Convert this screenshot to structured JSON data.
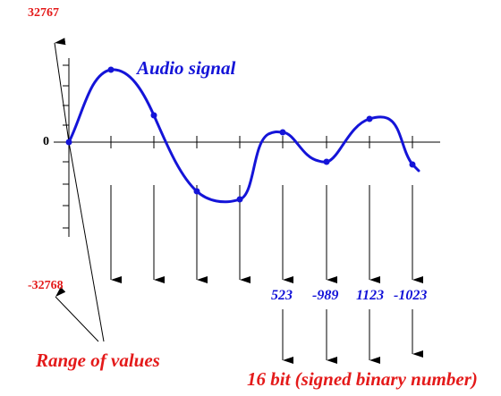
{
  "labels": {
    "max_value": "32767",
    "zero": "0",
    "min_value": "-32768",
    "signal_title": "Audio signal",
    "range_caption": "Range of values",
    "bits_caption": "16 bit (signed binary number)"
  },
  "samples": [
    "523",
    "-989",
    "1123",
    "-1023"
  ],
  "colors": {
    "red_text": "#e41a1a",
    "blue_signal": "#1414d8",
    "lines": "#000000"
  }
}
